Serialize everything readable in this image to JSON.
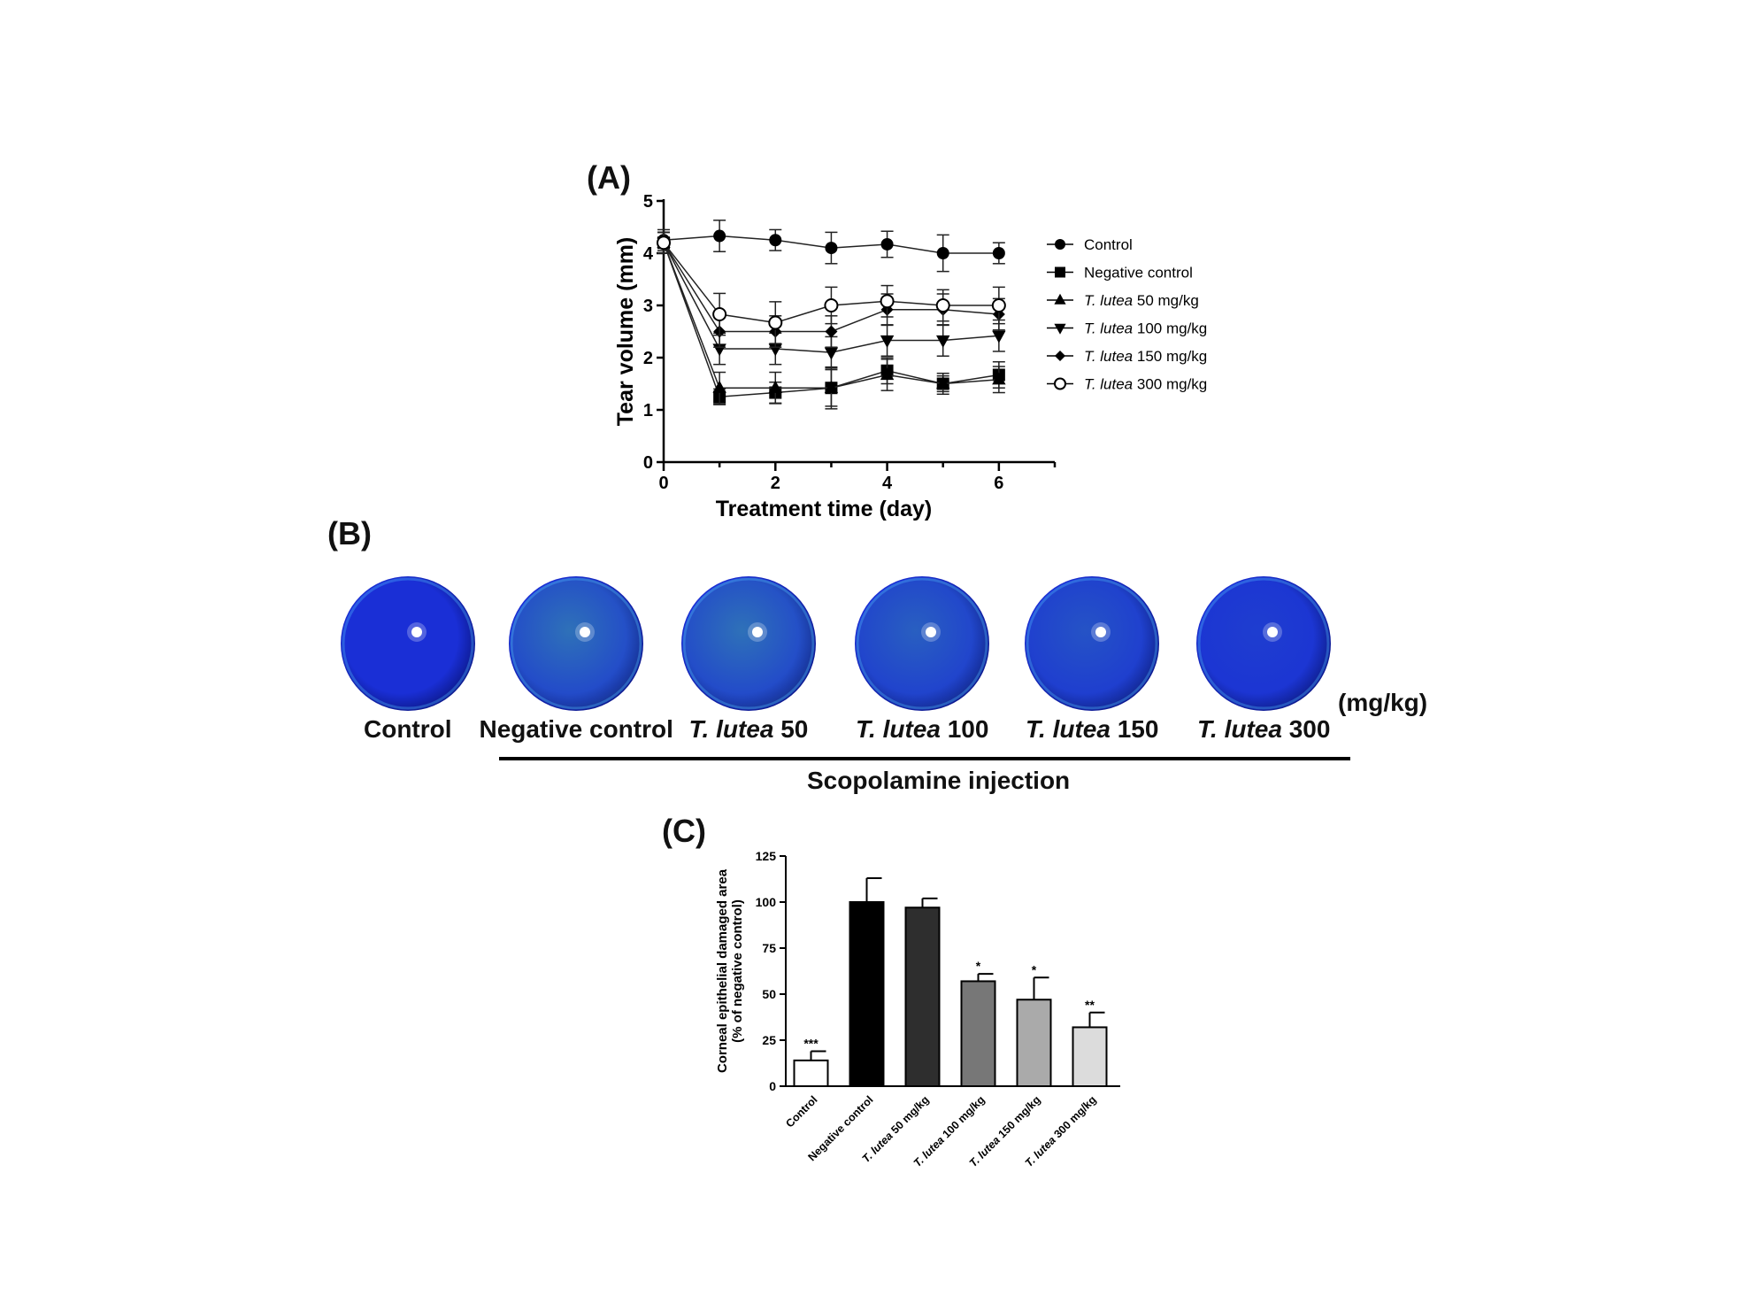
{
  "panels": {
    "a": "(A)",
    "b": "(B)",
    "c": "(C)"
  },
  "chart_data": [
    {
      "id": "A",
      "type": "line",
      "xlabel": "Treatment time (day)",
      "ylabel": "Tear volume (mm)",
      "xlim": [
        0,
        7
      ],
      "ylim": [
        0,
        5
      ],
      "xticks": [
        0,
        2,
        4,
        6
      ],
      "yticks": [
        0,
        1,
        2,
        3,
        4,
        5
      ],
      "x": [
        0,
        1,
        2,
        3,
        4,
        5,
        6
      ],
      "legend_position": "right",
      "series": [
        {
          "name": "Control",
          "italic": "",
          "suffix": "",
          "marker": "circle",
          "values": [
            4.25,
            4.33,
            4.25,
            4.1,
            4.17,
            4.0,
            4.0
          ],
          "errors": [
            0.2,
            0.3,
            0.2,
            0.3,
            0.25,
            0.35,
            0.2
          ]
        },
        {
          "name": "Negative control",
          "italic": "",
          "suffix": "",
          "marker": "square",
          "values": [
            4.2,
            1.25,
            1.33,
            1.42,
            1.75,
            1.5,
            1.67
          ],
          "errors": [
            0.2,
            0.15,
            0.2,
            0.4,
            0.25,
            0.15,
            0.25
          ]
        },
        {
          "name": "T. lutea 50 mg/kg",
          "italic": "T. lutea",
          "suffix": " 50 mg/kg",
          "marker": "triangle-up",
          "values": [
            4.2,
            1.42,
            1.42,
            1.42,
            1.67,
            1.5,
            1.58
          ],
          "errors": [
            0.2,
            0.3,
            0.3,
            0.35,
            0.3,
            0.2,
            0.25
          ]
        },
        {
          "name": "T. lutea 100 mg/kg",
          "italic": "T. lutea",
          "suffix": " 100 mg/kg",
          "marker": "triangle-down",
          "values": [
            4.2,
            2.17,
            2.17,
            2.1,
            2.33,
            2.33,
            2.42
          ],
          "errors": [
            0.2,
            0.3,
            0.3,
            0.3,
            0.3,
            0.3,
            0.3
          ]
        },
        {
          "name": "T. lutea 150 mg/kg",
          "italic": "T. lutea",
          "suffix": " 150 mg/kg",
          "marker": "diamond",
          "values": [
            4.2,
            2.5,
            2.5,
            2.5,
            2.92,
            2.92,
            2.83
          ],
          "errors": [
            0.2,
            0.3,
            0.3,
            0.3,
            0.3,
            0.3,
            0.3
          ]
        },
        {
          "name": "T. lutea 300 mg/kg",
          "italic": "T. lutea",
          "suffix": " 300 mg/kg",
          "marker": "open-circle",
          "values": [
            4.2,
            2.83,
            2.67,
            3.0,
            3.08,
            3.0,
            3.0
          ],
          "errors": [
            0.2,
            0.4,
            0.4,
            0.35,
            0.3,
            0.3,
            0.35
          ]
        }
      ]
    },
    {
      "id": "C",
      "type": "bar",
      "ylabel_line1": "Corneal epithelial damaged area",
      "ylabel_line2": "(% of negative control)",
      "ylim": [
        0,
        125
      ],
      "yticks": [
        0,
        25,
        50,
        75,
        100,
        125
      ],
      "categories": [
        "Control",
        "Negative control",
        "T. lutea 50 mg/kg",
        "T. lutea 100 mg/kg",
        "T. lutea 150 mg/kg",
        "T. lutea 300 mg/kg"
      ],
      "category_parts": [
        {
          "italic": "",
          "text": "Control"
        },
        {
          "italic": "",
          "text": "Negative control"
        },
        {
          "italic": "T. lutea",
          "text": " 50 mg/kg"
        },
        {
          "italic": "T. lutea",
          "text": " 100 mg/kg"
        },
        {
          "italic": "T. lutea",
          "text": " 150 mg/kg"
        },
        {
          "italic": "T. lutea",
          "text": " 300 mg/kg"
        }
      ],
      "values": [
        14,
        100,
        97,
        57,
        47,
        32
      ],
      "errors": [
        5,
        13,
        5,
        4,
        12,
        8
      ],
      "significance": [
        "***",
        "",
        "",
        "*",
        "*",
        "**"
      ],
      "colors": [
        "#ffffff",
        "#000000",
        "#2e2e2e",
        "#777777",
        "#aaaaaa",
        "#dcdcdc"
      ]
    }
  ],
  "images": {
    "unit": "(mg/kg)",
    "group_label": "Scopolamine injection",
    "eyes": [
      {
        "italic": "",
        "text": "Control",
        "tone": "clear"
      },
      {
        "italic": "",
        "text": "Negative control",
        "tone": "heavy"
      },
      {
        "italic": "T. lutea",
        "text": " 50",
        "tone": "heavy"
      },
      {
        "italic": "T. lutea",
        "text": " 100",
        "tone": "medium"
      },
      {
        "italic": "T. lutea",
        "text": " 150",
        "tone": "light"
      },
      {
        "italic": "T. lutea",
        "text": " 300",
        "tone": "faint"
      }
    ]
  },
  "colors": {
    "eye_base": "#1a2fd6",
    "eye_dark": "#0a1580",
    "eye_stain": "#3fa7a0",
    "line": "#222222"
  }
}
